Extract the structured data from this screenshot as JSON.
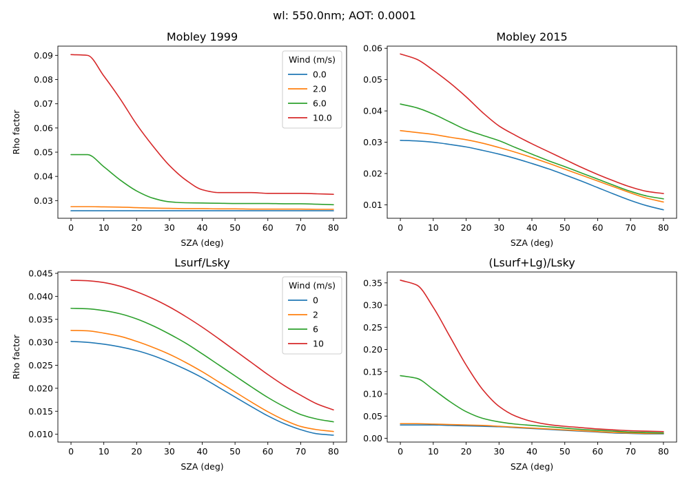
{
  "figure": {
    "suptitle": "wl: 550.0nm; AOT: 0.0001"
  },
  "chart_data": [
    {
      "type": "line",
      "title": "Mobley 1999",
      "xlabel": "SZA (deg)",
      "ylabel": "Rho factor",
      "xlim": [
        -4,
        84
      ],
      "ylim": [
        0.0227,
        0.0938
      ],
      "xticks": [
        0,
        10,
        20,
        30,
        40,
        50,
        60,
        70,
        80
      ],
      "yticks": [
        0.03,
        0.04,
        0.05,
        0.06,
        0.07,
        0.08,
        0.09
      ],
      "grid": false,
      "legend": {
        "title": "Wind (m/s)",
        "position": "top-right"
      },
      "x": [
        0,
        5,
        10,
        15,
        20,
        25,
        30,
        35,
        40,
        45,
        50,
        55,
        60,
        65,
        70,
        75,
        80
      ],
      "series": [
        {
          "name": "0.0",
          "color": "#1f77b4",
          "values": [
            0.0258,
            0.0258,
            0.0258,
            0.0258,
            0.0258,
            0.0258,
            0.0258,
            0.0258,
            0.0258,
            0.0258,
            0.0258,
            0.0258,
            0.0258,
            0.0258,
            0.0258,
            0.0258,
            0.0258
          ]
        },
        {
          "name": "2.0",
          "color": "#ff7f0e",
          "values": [
            0.0275,
            0.0275,
            0.0274,
            0.0273,
            0.0271,
            0.0269,
            0.0268,
            0.0267,
            0.0267,
            0.0266,
            0.0266,
            0.0265,
            0.0265,
            0.0265,
            0.0265,
            0.0264,
            0.0264
          ]
        },
        {
          "name": "6.0",
          "color": "#2ca02c",
          "values": [
            0.049,
            0.049,
            0.044,
            0.0385,
            0.034,
            0.031,
            0.0295,
            0.0291,
            0.029,
            0.0289,
            0.0288,
            0.0288,
            0.0288,
            0.0287,
            0.0287,
            0.0285,
            0.0283
          ]
        },
        {
          "name": "10.0",
          "color": "#d62728",
          "values": [
            0.0903,
            0.09,
            0.0815,
            0.072,
            0.0615,
            0.0525,
            0.0445,
            0.0385,
            0.0345,
            0.0333,
            0.0333,
            0.0333,
            0.033,
            0.033,
            0.033,
            0.0328,
            0.0326
          ]
        }
      ]
    },
    {
      "type": "line",
      "title": "Mobley 2015",
      "xlabel": "SZA (deg)",
      "ylabel": "",
      "xlim": [
        -4,
        84
      ],
      "ylim": [
        0.0057,
        0.0607
      ],
      "xticks": [
        0,
        10,
        20,
        30,
        40,
        50,
        60,
        70,
        80
      ],
      "yticks": [
        0.01,
        0.02,
        0.03,
        0.04,
        0.05,
        0.06
      ],
      "grid": false,
      "x": [
        0,
        5,
        10,
        15,
        20,
        25,
        30,
        35,
        40,
        45,
        50,
        55,
        60,
        65,
        70,
        75,
        80
      ],
      "series": [
        {
          "color": "#1f77b4",
          "values": [
            0.0306,
            0.0304,
            0.03,
            0.0293,
            0.0285,
            0.0274,
            0.0262,
            0.0248,
            0.0232,
            0.0215,
            0.0196,
            0.0176,
            0.0155,
            0.0134,
            0.0114,
            0.0097,
            0.0084
          ]
        },
        {
          "color": "#ff7f0e",
          "values": [
            0.0337,
            0.0331,
            0.0325,
            0.0316,
            0.0308,
            0.0297,
            0.0283,
            0.0268,
            0.0251,
            0.0233,
            0.0214,
            0.0195,
            0.0176,
            0.0157,
            0.0138,
            0.0121,
            0.0109
          ]
        },
        {
          "color": "#2ca02c",
          "values": [
            0.0422,
            0.041,
            0.039,
            0.0365,
            0.034,
            0.0322,
            0.0305,
            0.0283,
            0.0262,
            0.0241,
            0.0222,
            0.0202,
            0.0182,
            0.0162,
            0.0143,
            0.0128,
            0.0119
          ]
        },
        {
          "color": "#d62728",
          "values": [
            0.0582,
            0.0565,
            0.053,
            0.049,
            0.0445,
            0.0395,
            0.0352,
            0.0322,
            0.0295,
            0.027,
            0.0245,
            0.022,
            0.0197,
            0.0176,
            0.0157,
            0.0143,
            0.0136
          ]
        }
      ]
    },
    {
      "type": "line",
      "title": "Lsurf/Lsky",
      "xlabel": "SZA (deg)",
      "ylabel": "Rho factor",
      "xlim": [
        -4,
        84
      ],
      "ylim": [
        0.0083,
        0.0453
      ],
      "xticks": [
        0,
        10,
        20,
        30,
        40,
        50,
        60,
        70,
        80
      ],
      "yticks": [
        0.01,
        0.015,
        0.02,
        0.025,
        0.03,
        0.035,
        0.04,
        0.045
      ],
      "grid": false,
      "legend": {
        "title": "Wind (m/s)",
        "position": "top-right"
      },
      "x": [
        0,
        5,
        10,
        15,
        20,
        25,
        30,
        35,
        40,
        45,
        50,
        55,
        60,
        65,
        70,
        75,
        80
      ],
      "series": [
        {
          "name": "0",
          "color": "#1f77b4",
          "values": [
            0.0302,
            0.03,
            0.0296,
            0.029,
            0.0282,
            0.0271,
            0.0257,
            0.0241,
            0.0223,
            0.0202,
            0.0181,
            0.016,
            0.014,
            0.0123,
            0.011,
            0.0101,
            0.0098
          ]
        },
        {
          "name": "2",
          "color": "#ff7f0e",
          "values": [
            0.0326,
            0.0325,
            0.032,
            0.0313,
            0.0302,
            0.0289,
            0.0274,
            0.0256,
            0.0236,
            0.0214,
            0.0192,
            0.017,
            0.0149,
            0.0131,
            0.0117,
            0.011,
            0.0106
          ]
        },
        {
          "name": "6",
          "color": "#2ca02c",
          "values": [
            0.0374,
            0.0373,
            0.0369,
            0.0362,
            0.0351,
            0.0336,
            0.0318,
            0.0298,
            0.0275,
            0.0251,
            0.0227,
            0.0203,
            0.018,
            0.016,
            0.0143,
            0.0133,
            0.0127
          ]
        },
        {
          "name": "10",
          "color": "#d62728",
          "values": [
            0.0435,
            0.0434,
            0.043,
            0.0422,
            0.041,
            0.0395,
            0.0377,
            0.0356,
            0.0333,
            0.0308,
            0.0282,
            0.0256,
            0.023,
            0.0206,
            0.0185,
            0.0166,
            0.0153
          ]
        }
      ]
    },
    {
      "type": "line",
      "title": "(Lsurf+Lg)/Lsky",
      "xlabel": "SZA (deg)",
      "ylabel": "",
      "xlim": [
        -4,
        84
      ],
      "ylim": [
        -0.0085,
        0.3745
      ],
      "xticks": [
        0,
        10,
        20,
        30,
        40,
        50,
        60,
        70,
        80
      ],
      "yticks": [
        0.0,
        0.05,
        0.1,
        0.15,
        0.2,
        0.25,
        0.3,
        0.35
      ],
      "grid": false,
      "x": [
        0,
        5,
        10,
        15,
        20,
        25,
        30,
        35,
        40,
        45,
        50,
        55,
        60,
        65,
        70,
        75,
        80
      ],
      "series": [
        {
          "color": "#1f77b4",
          "values": [
            0.03,
            0.03,
            0.03,
            0.029,
            0.028,
            0.027,
            0.026,
            0.024,
            0.022,
            0.02,
            0.018,
            0.016,
            0.014,
            0.012,
            0.011,
            0.01,
            0.01
          ]
        },
        {
          "color": "#ff7f0e",
          "values": [
            0.033,
            0.033,
            0.032,
            0.031,
            0.03,
            0.029,
            0.027,
            0.025,
            0.023,
            0.021,
            0.019,
            0.017,
            0.015,
            0.013,
            0.012,
            0.011,
            0.011
          ]
        },
        {
          "color": "#2ca02c",
          "values": [
            0.141,
            0.135,
            0.11,
            0.083,
            0.06,
            0.045,
            0.037,
            0.032,
            0.029,
            0.026,
            0.023,
            0.02,
            0.018,
            0.016,
            0.014,
            0.013,
            0.012
          ]
        },
        {
          "color": "#d62728",
          "values": [
            0.356,
            0.345,
            0.295,
            0.23,
            0.165,
            0.11,
            0.072,
            0.05,
            0.038,
            0.031,
            0.027,
            0.024,
            0.021,
            0.019,
            0.017,
            0.016,
            0.015
          ]
        }
      ]
    }
  ]
}
